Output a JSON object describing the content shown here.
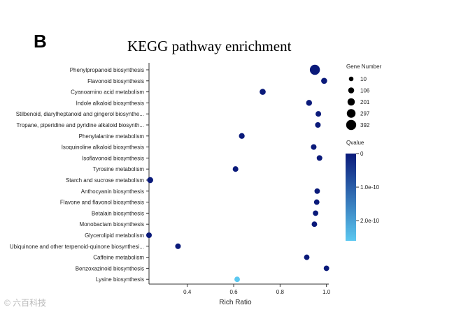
{
  "panel_label": "B",
  "watermark": "© 六百科技",
  "colors": {
    "low_q": "#0a1a7a",
    "high_q": "#5bc8f0",
    "axis": "#333333"
  },
  "chart_data": {
    "type": "scatter",
    "title": "KEGG pathway enrichment",
    "xlabel": "Rich Ratio",
    "ylabel": "",
    "xlim": [
      0.235,
      1.01
    ],
    "xticks": [
      0.4,
      0.6,
      0.8,
      1.0
    ],
    "xtick_labels": [
      "0.4",
      "0.6",
      "0.8",
      "1.0"
    ],
    "points": [
      {
        "pathway": "Phenylpropanoid biosynthesis",
        "rich_ratio": 0.95,
        "gene_number": 392,
        "qvalue": 0
      },
      {
        "pathway": "Flavonoid biosynthesis",
        "rich_ratio": 0.99,
        "gene_number": 110,
        "qvalue": 0
      },
      {
        "pathway": "Cyanoamino acid metabolism",
        "rich_ratio": 0.725,
        "gene_number": 110,
        "qvalue": 0
      },
      {
        "pathway": "Indole alkaloid biosynthesis",
        "rich_ratio": 0.925,
        "gene_number": 100,
        "qvalue": 0
      },
      {
        "pathway": "Stilbenoid, diarylheptanoid and gingerol biosynthe...",
        "rich_ratio": 0.965,
        "gene_number": 80,
        "qvalue": 0
      },
      {
        "pathway": "Tropane, piperidine and pyridine alkaloid biosynth...",
        "rich_ratio": 0.963,
        "gene_number": 80,
        "qvalue": 0
      },
      {
        "pathway": "Phenylalanine metabolism",
        "rich_ratio": 0.635,
        "gene_number": 90,
        "qvalue": 0
      },
      {
        "pathway": "Isoquinoline alkaloid biosynthesis",
        "rich_ratio": 0.945,
        "gene_number": 80,
        "qvalue": 0
      },
      {
        "pathway": "Isoflavonoid biosynthesis",
        "rich_ratio": 0.97,
        "gene_number": 80,
        "qvalue": 0
      },
      {
        "pathway": "Tyrosine metabolism",
        "rich_ratio": 0.608,
        "gene_number": 80,
        "qvalue": 0
      },
      {
        "pathway": "Starch and sucrose metabolism",
        "rich_ratio": 0.24,
        "gene_number": 110,
        "qvalue": 0
      },
      {
        "pathway": "Anthocyanin biosynthesis",
        "rich_ratio": 0.96,
        "gene_number": 70,
        "qvalue": 0
      },
      {
        "pathway": "Flavone and flavonol biosynthesis",
        "rich_ratio": 0.958,
        "gene_number": 70,
        "qvalue": 0
      },
      {
        "pathway": "Betalain biosynthesis",
        "rich_ratio": 0.953,
        "gene_number": 70,
        "qvalue": 0
      },
      {
        "pathway": "Monobactam biosynthesis",
        "rich_ratio": 0.948,
        "gene_number": 70,
        "qvalue": 0
      },
      {
        "pathway": "Glycerolipid metabolism",
        "rich_ratio": 0.235,
        "gene_number": 80,
        "qvalue": 0
      },
      {
        "pathway": "Ubiquinone and other terpenoid-quinone biosynthesi...",
        "rich_ratio": 0.36,
        "gene_number": 80,
        "qvalue": 0
      },
      {
        "pathway": "Caffeine metabolism",
        "rich_ratio": 0.915,
        "gene_number": 70,
        "qvalue": 0
      },
      {
        "pathway": "Benzoxazinoid biosynthesis",
        "rich_ratio": 1.0,
        "gene_number": 70,
        "qvalue": 0
      },
      {
        "pathway": "Lysine biosynthesis",
        "rich_ratio": 0.615,
        "gene_number": 70,
        "qvalue": 2.6e-10
      }
    ],
    "size_legend": {
      "title": "Gene Number",
      "values": [
        10,
        106,
        201,
        297,
        392
      ],
      "labels": [
        "10",
        "106",
        "201",
        "297",
        "392"
      ]
    },
    "color_legend": {
      "title": "Qvalue",
      "range": [
        0,
        2.6e-10
      ],
      "ticks": [
        0,
        1e-10,
        2e-10
      ],
      "tick_labels": [
        "0",
        "1.0e-10",
        "2.0e-10"
      ]
    }
  }
}
